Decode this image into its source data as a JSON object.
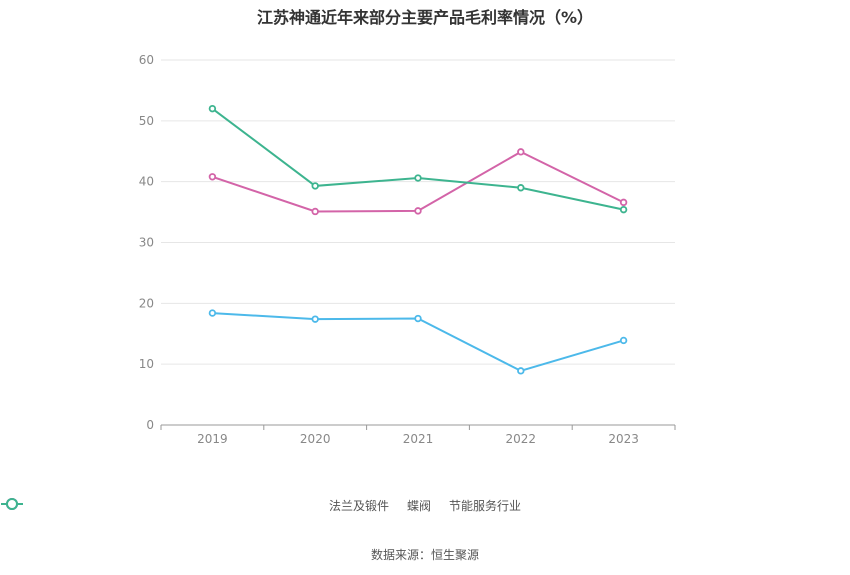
{
  "chart_data": {
    "type": "line",
    "title": "江苏神通近年来部分主要产品毛利率情况（%）",
    "categories": [
      "2019",
      "2020",
      "2021",
      "2022",
      "2023"
    ],
    "ylim": [
      0,
      60
    ],
    "yticks": [
      0,
      10,
      20,
      30,
      40,
      50,
      60
    ],
    "grid": true,
    "legend_position": "bottom",
    "series": [
      {
        "name": "法兰及锻件",
        "color": "#4cb9ea",
        "values": [
          18.4,
          17.4,
          17.5,
          8.9,
          13.9
        ]
      },
      {
        "name": "蝶阀",
        "color": "#d364a8",
        "values": [
          40.8,
          35.1,
          35.2,
          44.9,
          36.6
        ]
      },
      {
        "name": "节能服务行业",
        "color": "#3db48f",
        "values": [
          52.0,
          39.3,
          40.6,
          39.0,
          35.4
        ]
      }
    ],
    "source": "数据来源：恒生聚源"
  }
}
